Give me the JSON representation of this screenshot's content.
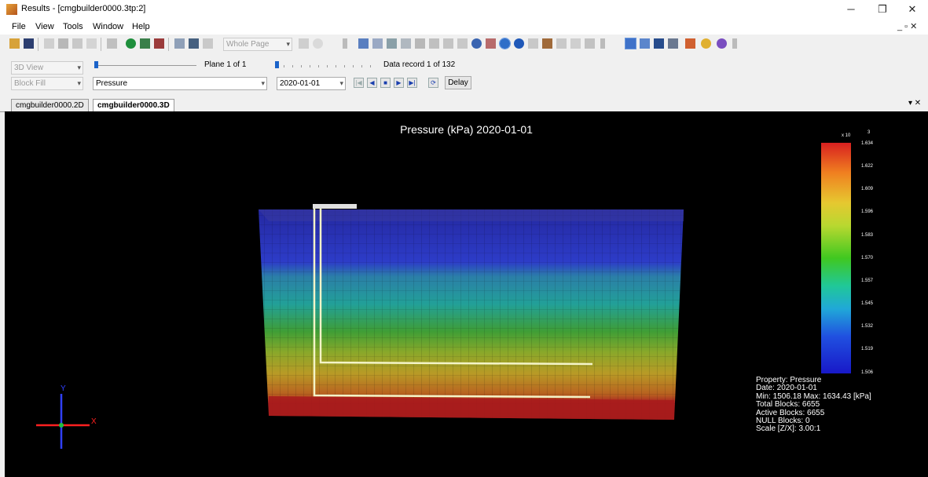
{
  "window": {
    "title": "Results - [cmgbuilder0000.3tp:2]",
    "minimize": "─",
    "restore": "❐",
    "close": "✕"
  },
  "menu": {
    "items": [
      "File",
      "View",
      "Tools",
      "Window",
      "Help"
    ],
    "mdi_controls": "_ ▫ ✕"
  },
  "toolbar": {
    "zoom_combo": "Whole Page"
  },
  "panel": {
    "view_mode": "3D View",
    "fill_mode": "Block Fill",
    "plane_label": "Plane 1 of 1",
    "record_label": "Data record 1 of 132",
    "property": "Pressure",
    "date": "2020-01-01",
    "delay_label": "Delay",
    "pressure_progress": 0.0,
    "record_progress": 0.0
  },
  "tabs": [
    {
      "label": "cmgbuilder0000.2D",
      "active": false
    },
    {
      "label": "cmgbuilder0000.3D",
      "active": true
    }
  ],
  "tabs_menu": "▾ ✕",
  "viewport": {
    "title": "Pressure (kPa)  2020-01-01",
    "colorbar": {
      "exponent": "x 10",
      "exponent_power": "3",
      "ticks": [
        "1.634",
        "1.622",
        "1.609",
        "1.596",
        "1.583",
        "1.570",
        "1.557",
        "1.545",
        "1.532",
        "1.519",
        "1.506"
      ]
    },
    "info": [
      "Property: Pressure",
      "Date: 2020-01-01",
      "Min: 1506.18  Max: 1634.43 [kPa]",
      "Total Blocks: 6655",
      "Active Blocks: 6655",
      "NULL Blocks: 0",
      "Scale [Z/X]: 3.00:1"
    ],
    "axes": {
      "x": "X",
      "y": "Y"
    }
  },
  "colors": {
    "accent": "#1a63c9",
    "background": "#000000"
  }
}
